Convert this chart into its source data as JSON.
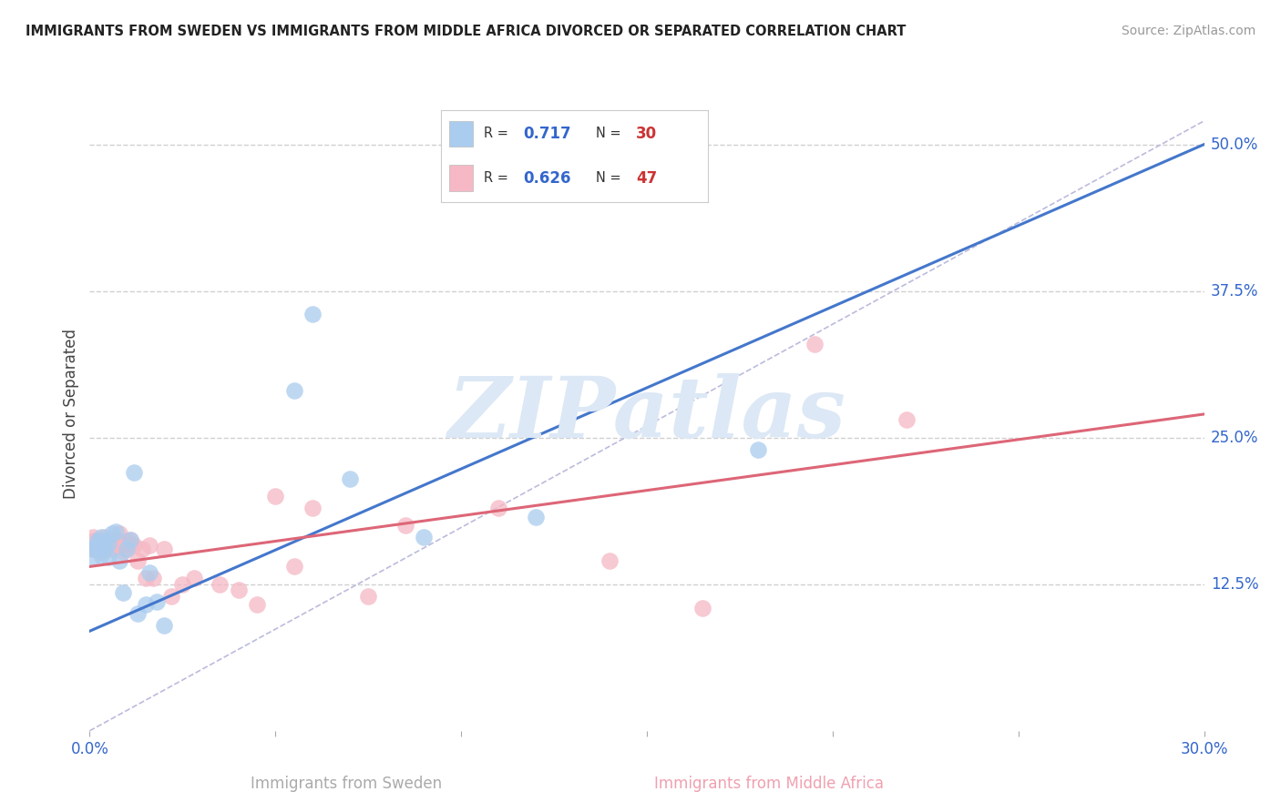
{
  "title": "IMMIGRANTS FROM SWEDEN VS IMMIGRANTS FROM MIDDLE AFRICA DIVORCED OR SEPARATED CORRELATION CHART",
  "source": "Source: ZipAtlas.com",
  "xlabel_sweden": "Immigrants from Sweden",
  "xlabel_middle_africa": "Immigrants from Middle Africa",
  "ylabel": "Divorced or Separated",
  "xlim": [
    0.0,
    0.3
  ],
  "ylim": [
    0.0,
    0.54
  ],
  "yticks": [
    0.125,
    0.25,
    0.375,
    0.5
  ],
  "ytick_labels": [
    "12.5%",
    "25.0%",
    "37.5%",
    "50.0%"
  ],
  "xtick_positions": [
    0.0,
    0.05,
    0.1,
    0.15,
    0.2,
    0.25,
    0.3
  ],
  "grid_color": "#d0d0d0",
  "background_color": "#ffffff",
  "sweden_color": "#aaccee",
  "middle_africa_color": "#f5b8c4",
  "sweden_line_color": "#4477cc",
  "middle_africa_line_color": "#dd6677",
  "diag_line_color": "#bbbbdd",
  "watermark_text": "ZIPatlas",
  "watermark_color": "#dce8f5",
  "legend_R_color": "#3366cc",
  "legend_N_color": "#cc3333",
  "sweden_R": 0.717,
  "sweden_N": 30,
  "middle_africa_R": 0.626,
  "middle_africa_N": 47,
  "sweden_scatter_x": [
    0.001,
    0.001,
    0.002,
    0.002,
    0.002,
    0.003,
    0.003,
    0.003,
    0.004,
    0.004,
    0.005,
    0.005,
    0.006,
    0.007,
    0.008,
    0.009,
    0.01,
    0.011,
    0.012,
    0.013,
    0.015,
    0.016,
    0.018,
    0.02,
    0.055,
    0.06,
    0.07,
    0.09,
    0.12,
    0.18
  ],
  "sweden_scatter_y": [
    0.155,
    0.148,
    0.158,
    0.162,
    0.155,
    0.15,
    0.165,
    0.158,
    0.155,
    0.162,
    0.148,
    0.16,
    0.168,
    0.17,
    0.145,
    0.118,
    0.155,
    0.163,
    0.22,
    0.1,
    0.108,
    0.135,
    0.11,
    0.09,
    0.29,
    0.355,
    0.215,
    0.165,
    0.182,
    0.24
  ],
  "middle_africa_scatter_x": [
    0.001,
    0.001,
    0.001,
    0.002,
    0.002,
    0.003,
    0.003,
    0.003,
    0.004,
    0.004,
    0.005,
    0.005,
    0.006,
    0.006,
    0.007,
    0.007,
    0.008,
    0.008,
    0.009,
    0.009,
    0.01,
    0.01,
    0.011,
    0.011,
    0.012,
    0.013,
    0.014,
    0.015,
    0.016,
    0.017,
    0.02,
    0.022,
    0.025,
    0.028,
    0.035,
    0.04,
    0.045,
    0.05,
    0.055,
    0.06,
    0.075,
    0.085,
    0.11,
    0.14,
    0.165,
    0.195,
    0.22
  ],
  "middle_africa_scatter_y": [
    0.155,
    0.162,
    0.165,
    0.155,
    0.16,
    0.153,
    0.158,
    0.162,
    0.155,
    0.165,
    0.155,
    0.16,
    0.155,
    0.16,
    0.163,
    0.158,
    0.168,
    0.158,
    0.16,
    0.153,
    0.155,
    0.162,
    0.16,
    0.163,
    0.158,
    0.145,
    0.155,
    0.13,
    0.158,
    0.13,
    0.155,
    0.115,
    0.125,
    0.13,
    0.125,
    0.12,
    0.108,
    0.2,
    0.14,
    0.19,
    0.115,
    0.175,
    0.19,
    0.145,
    0.105,
    0.33,
    0.265
  ],
  "sweden_trend_x": [
    0.0,
    0.3
  ],
  "sweden_trend_y": [
    0.085,
    0.5
  ],
  "africa_trend_x": [
    0.0,
    0.3
  ],
  "africa_trend_y": [
    0.14,
    0.27
  ]
}
